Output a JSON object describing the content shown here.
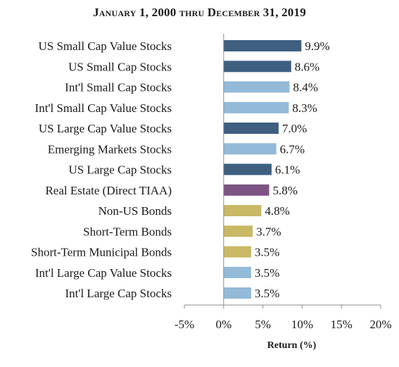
{
  "chart_data": {
    "type": "bar",
    "orientation": "horizontal",
    "title": "January 1, 2000 thru December 31, 2019",
    "xlabel": "Return (%)",
    "ylabel": "",
    "xlim": [
      -5,
      20
    ],
    "xticks": [
      -5,
      0,
      5,
      10,
      15,
      20
    ],
    "xtick_labels": [
      "-5%",
      "0%",
      "5%",
      "10%",
      "15%",
      "20%"
    ],
    "grid": false,
    "categories": [
      "US Small Cap Value Stocks",
      "US Small Cap Stocks",
      "Int'l Small Cap Stocks",
      "Int'l Small Cap Value Stocks",
      "US Large Cap Value Stocks",
      "Emerging Markets Stocks",
      "US Large Cap Stocks",
      "Real Estate (Direct TIAA)",
      "Non-US Bonds",
      "Short-Term Bonds",
      "Short-Term Municipal Bonds",
      "Int'l Large Cap Value Stocks",
      "Int'l Large Cap Stocks"
    ],
    "values": [
      9.9,
      8.6,
      8.4,
      8.3,
      7.0,
      6.7,
      6.1,
      5.8,
      4.8,
      3.7,
      3.5,
      3.5,
      3.5
    ],
    "value_labels": [
      "9.9%",
      "8.6%",
      "8.4%",
      "8.3%",
      "7.0%",
      "6.7%",
      "6.1%",
      "5.8%",
      "4.8%",
      "3.7%",
      "3.5%",
      "3.5%",
      "3.5%"
    ],
    "bar_colors": [
      "#3e5f80",
      "#3e5f80",
      "#93bad8",
      "#93bad8",
      "#3e5f80",
      "#93bad8",
      "#3e5f80",
      "#7d5584",
      "#c9b864",
      "#c9b864",
      "#c9b864",
      "#93bad8",
      "#93bad8"
    ],
    "axis_color": "#8c8c8c",
    "text_color": "#1a1a1a"
  }
}
